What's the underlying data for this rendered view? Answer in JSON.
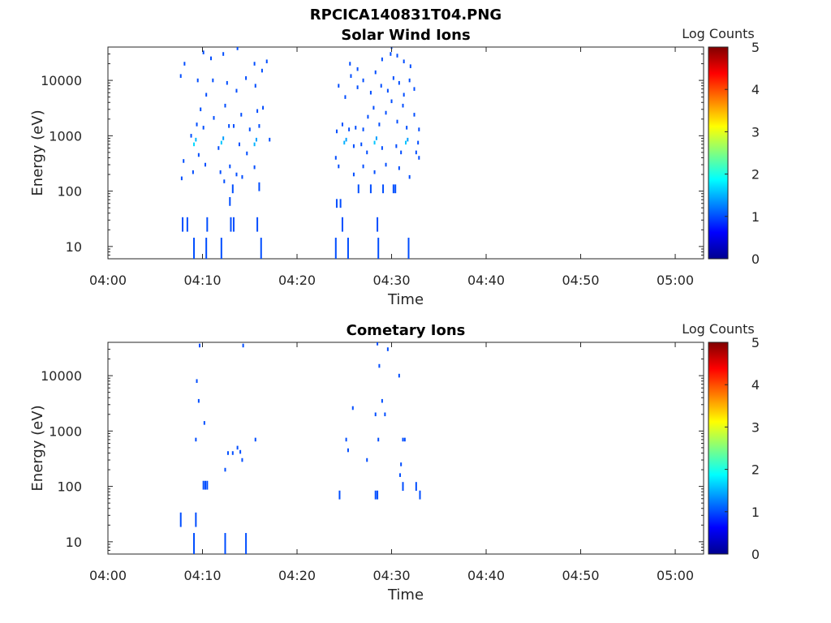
{
  "figure_title": "RPCICA140831T04.PNG",
  "colors": {
    "fill": "#ffffff",
    "axis": "#262626",
    "low_count": "#00008f",
    "mid_count": "#1f5fff"
  },
  "colorbar": {
    "label": "Log Counts",
    "range": [
      0,
      5
    ],
    "ticks": [
      "0",
      "1",
      "2",
      "3",
      "4",
      "5"
    ],
    "colormap": "jet"
  },
  "chart_data": [
    {
      "type": "heatmap",
      "title": "Solar Wind Ions",
      "xlabel": "Time",
      "ylabel": "Energy (eV)",
      "x_axis": "time HH:MM",
      "xlim": [
        "04:00",
        "05:03"
      ],
      "xticks": [
        "04:00",
        "04:10",
        "04:20",
        "04:30",
        "04:40",
        "04:50",
        "05:00"
      ],
      "y_scale": "log",
      "ylim": [
        6,
        40000
      ],
      "yticks": [
        "10",
        "100",
        "1000",
        "10000"
      ],
      "cells": [
        [
          "04:07.9",
          25,
          1
        ],
        [
          "04:08.4",
          25,
          1
        ],
        [
          "04:10.5",
          25,
          1
        ],
        [
          "04:13.0",
          25,
          1
        ],
        [
          "04:13.3",
          25,
          1
        ],
        [
          "04:15.8",
          25,
          1
        ],
        [
          "04:24.2",
          60,
          1
        ],
        [
          "04:24.6",
          60,
          1
        ],
        [
          "04:24.8",
          25,
          1
        ],
        [
          "04:28.5",
          25,
          1
        ],
        [
          "04:09.1",
          9,
          1
        ],
        [
          "04:10.4",
          9,
          1
        ],
        [
          "04:12.0",
          9,
          1
        ],
        [
          "04:16.2",
          9,
          1
        ],
        [
          "04:24.1",
          9,
          1
        ],
        [
          "04:25.4",
          9,
          1
        ],
        [
          "04:28.6",
          9,
          1
        ],
        [
          "04:31.8",
          9,
          1
        ],
        [
          "04:12.9",
          65,
          1
        ],
        [
          "04:13.2",
          110,
          1
        ],
        [
          "04:12.3",
          150,
          1
        ],
        [
          "04:13.6",
          200,
          1
        ],
        [
          "04:07.8",
          170,
          1
        ],
        [
          "04:08.0",
          350,
          1
        ],
        [
          "04:09.0",
          220,
          1
        ],
        [
          "04:10.3",
          300,
          1
        ],
        [
          "04:11.9",
          220,
          1
        ],
        [
          "04:12.9",
          280,
          1
        ],
        [
          "04:14.2",
          180,
          1
        ],
        [
          "04:15.5",
          270,
          1
        ],
        [
          "04:16.0",
          120,
          1
        ],
        [
          "04:09.1",
          700,
          1.7
        ],
        [
          "04:09.3",
          850,
          1.5
        ],
        [
          "04:12.0",
          750,
          1.6
        ],
        [
          "04:12.2",
          900,
          1.4
        ],
        [
          "04:15.5",
          700,
          1.5
        ],
        [
          "04:15.7",
          850,
          1.4
        ],
        [
          "04:17.1",
          850,
          1
        ],
        [
          "04:08.8",
          1000,
          1
        ],
        [
          "04:09.6",
          450,
          1
        ],
        [
          "04:11.7",
          600,
          1
        ],
        [
          "04:13.9",
          700,
          1
        ],
        [
          "04:14.7",
          480,
          1
        ],
        [
          "04:09.4",
          1600,
          1
        ],
        [
          "04:10.1",
          1400,
          1
        ],
        [
          "04:11.2",
          2100,
          1
        ],
        [
          "04:12.4",
          3500,
          1
        ],
        [
          "04:13.3",
          1500,
          1
        ],
        [
          "04:14.1",
          2400,
          1
        ],
        [
          "04:15.0",
          1300,
          1
        ],
        [
          "04:15.8",
          2800,
          1
        ],
        [
          "04:16.4",
          3200,
          1
        ],
        [
          "04:09.8",
          3000,
          1
        ],
        [
          "04:10.4",
          5500,
          1
        ],
        [
          "04:11.1",
          10000,
          1
        ],
        [
          "04:12.6",
          9000,
          1
        ],
        [
          "04:13.6",
          6500,
          1
        ],
        [
          "04:14.6",
          11000,
          1
        ],
        [
          "04:15.6",
          8000,
          1
        ],
        [
          "04:16.3",
          15000,
          1
        ],
        [
          "04:07.7",
          12000,
          1
        ],
        [
          "04:08.1",
          20000,
          1
        ],
        [
          "04:09.5",
          10000,
          1
        ],
        [
          "04:10.1",
          32000,
          1
        ],
        [
          "04:10.9",
          25000,
          1
        ],
        [
          "04:12.2",
          30000,
          1
        ],
        [
          "04:13.7",
          38000,
          1
        ],
        [
          "04:15.5",
          20000,
          1
        ],
        [
          "04:16.8",
          22000,
          1
        ],
        [
          "04:12.8",
          1500,
          1
        ],
        [
          "04:16.0",
          1500,
          1
        ],
        [
          "04:24.1",
          400,
          1
        ],
        [
          "04:24.4",
          280,
          1
        ],
        [
          "04:25.0",
          750,
          1.5
        ],
        [
          "04:25.2",
          850,
          1.4
        ],
        [
          "04:28.2",
          750,
          1.6
        ],
        [
          "04:28.4",
          900,
          1.4
        ],
        [
          "04:31.5",
          750,
          1.6
        ],
        [
          "04:31.7",
          850,
          1.4
        ],
        [
          "04:32.8",
          750,
          1
        ],
        [
          "04:32.9",
          400,
          1
        ],
        [
          "04:26.0",
          650,
          1
        ],
        [
          "04:26.8",
          700,
          1
        ],
        [
          "04:27.4",
          500,
          1
        ],
        [
          "04:29.0",
          600,
          1
        ],
        [
          "04:30.5",
          650,
          1
        ],
        [
          "04:31.0",
          500,
          1
        ],
        [
          "04:32.6",
          500,
          1
        ],
        [
          "04:26.0",
          200,
          1
        ],
        [
          "04:27.0",
          280,
          1
        ],
        [
          "04:28.2",
          220,
          1
        ],
        [
          "04:29.4",
          300,
          1
        ],
        [
          "04:30.8",
          260,
          1
        ],
        [
          "04:31.9",
          180,
          1
        ],
        [
          "04:26.5",
          110,
          1
        ],
        [
          "04:27.8",
          110,
          1
        ],
        [
          "04:29.1",
          110,
          1
        ],
        [
          "04:30.2",
          110,
          1
        ],
        [
          "04:30.4",
          110,
          1
        ],
        [
          "04:24.2",
          1200,
          1
        ],
        [
          "04:24.8",
          1600,
          1
        ],
        [
          "04:25.5",
          1300,
          1
        ],
        [
          "04:26.2",
          1400,
          1
        ],
        [
          "04:27.0",
          1300,
          1
        ],
        [
          "04:27.5",
          2200,
          1
        ],
        [
          "04:28.1",
          3200,
          1
        ],
        [
          "04:28.7",
          1600,
          1
        ],
        [
          "04:29.4",
          2600,
          1
        ],
        [
          "04:30.0",
          4200,
          1
        ],
        [
          "04:30.6",
          1800,
          1
        ],
        [
          "04:31.2",
          3500,
          1
        ],
        [
          "04:31.6",
          1400,
          1
        ],
        [
          "04:32.4",
          2400,
          1
        ],
        [
          "04:32.9",
          1300,
          1
        ],
        [
          "04:24.4",
          8000,
          1
        ],
        [
          "04:25.1",
          5000,
          1
        ],
        [
          "04:25.7",
          12000,
          1
        ],
        [
          "04:26.4",
          7500,
          1
        ],
        [
          "04:27.0",
          10000,
          1
        ],
        [
          "04:27.8",
          6000,
          1
        ],
        [
          "04:28.3",
          14000,
          1
        ],
        [
          "04:28.9",
          8000,
          1
        ],
        [
          "04:29.6",
          6500,
          1
        ],
        [
          "04:30.2",
          11000,
          1
        ],
        [
          "04:30.8",
          9000,
          1
        ],
        [
          "04:31.3",
          5500,
          1
        ],
        [
          "04:31.9",
          10000,
          1
        ],
        [
          "04:32.4",
          7000,
          1
        ],
        [
          "04:29.9",
          30000,
          1
        ],
        [
          "04:30.0",
          40000,
          1
        ],
        [
          "04:30.6",
          28000,
          1
        ],
        [
          "04:31.3",
          22000,
          1
        ],
        [
          "04:25.6",
          20000,
          1
        ],
        [
          "04:26.4",
          16000,
          1
        ],
        [
          "04:29.0",
          24000,
          1
        ],
        [
          "04:32.0",
          18000,
          1
        ]
      ]
    },
    {
      "type": "heatmap",
      "title": "Cometary Ions",
      "xlabel": "Time",
      "ylabel": "Energy (eV)",
      "x_axis": "time HH:MM",
      "xlim": [
        "04:00",
        "05:03"
      ],
      "xticks": [
        "04:00",
        "04:10",
        "04:20",
        "04:30",
        "04:40",
        "04:50",
        "05:00"
      ],
      "y_scale": "log",
      "ylim": [
        6,
        40000
      ],
      "yticks": [
        "10",
        "100",
        "1000",
        "10000"
      ],
      "cells": [
        [
          "04:07.7",
          25,
          1
        ],
        [
          "04:09.3",
          25,
          1
        ],
        [
          "04:09.1",
          9,
          1
        ],
        [
          "04:12.4",
          9,
          1
        ],
        [
          "04:14.6",
          9,
          1
        ],
        [
          "04:10.1",
          105,
          1
        ],
        [
          "04:10.3",
          105,
          1
        ],
        [
          "04:10.5",
          105,
          1
        ],
        [
          "04:12.4",
          200,
          1
        ],
        [
          "04:12.7",
          400,
          1
        ],
        [
          "04:13.2",
          400,
          1
        ],
        [
          "04:13.7",
          500,
          1
        ],
        [
          "04:14.0",
          420,
          1
        ],
        [
          "04:14.2",
          300,
          1
        ],
        [
          "04:15.6",
          700,
          1
        ],
        [
          "04:09.3",
          700,
          1
        ],
        [
          "04:10.2",
          1400,
          1
        ],
        [
          "04:09.6",
          3500,
          1
        ],
        [
          "04:09.4",
          8000,
          1
        ],
        [
          "04:09.7",
          35000,
          1
        ],
        [
          "04:14.3",
          35000,
          1
        ],
        [
          "04:24.5",
          70,
          1
        ],
        [
          "04:28.3",
          70,
          1
        ],
        [
          "04:28.5",
          70,
          1
        ],
        [
          "04:32.6",
          100,
          1
        ],
        [
          "04:33.0",
          70,
          1
        ],
        [
          "04:25.2",
          700,
          1
        ],
        [
          "04:25.4",
          450,
          1
        ],
        [
          "04:27.4",
          300,
          1
        ],
        [
          "04:28.6",
          700,
          1
        ],
        [
          "04:28.3",
          2000,
          1
        ],
        [
          "04:29.3",
          2000,
          1
        ],
        [
          "04:29.0",
          3500,
          1
        ],
        [
          "04:25.9",
          2600,
          1
        ],
        [
          "04:28.7",
          15000,
          1
        ],
        [
          "04:31.0",
          250,
          1
        ],
        [
          "04:30.9",
          160,
          1
        ],
        [
          "04:31.2",
          100,
          1
        ],
        [
          "04:31.2",
          700,
          1
        ],
        [
          "04:31.4",
          700,
          1
        ],
        [
          "04:30.8",
          10000,
          1
        ],
        [
          "04:28.5",
          38000,
          1
        ],
        [
          "04:29.6",
          30000,
          1
        ]
      ]
    }
  ]
}
